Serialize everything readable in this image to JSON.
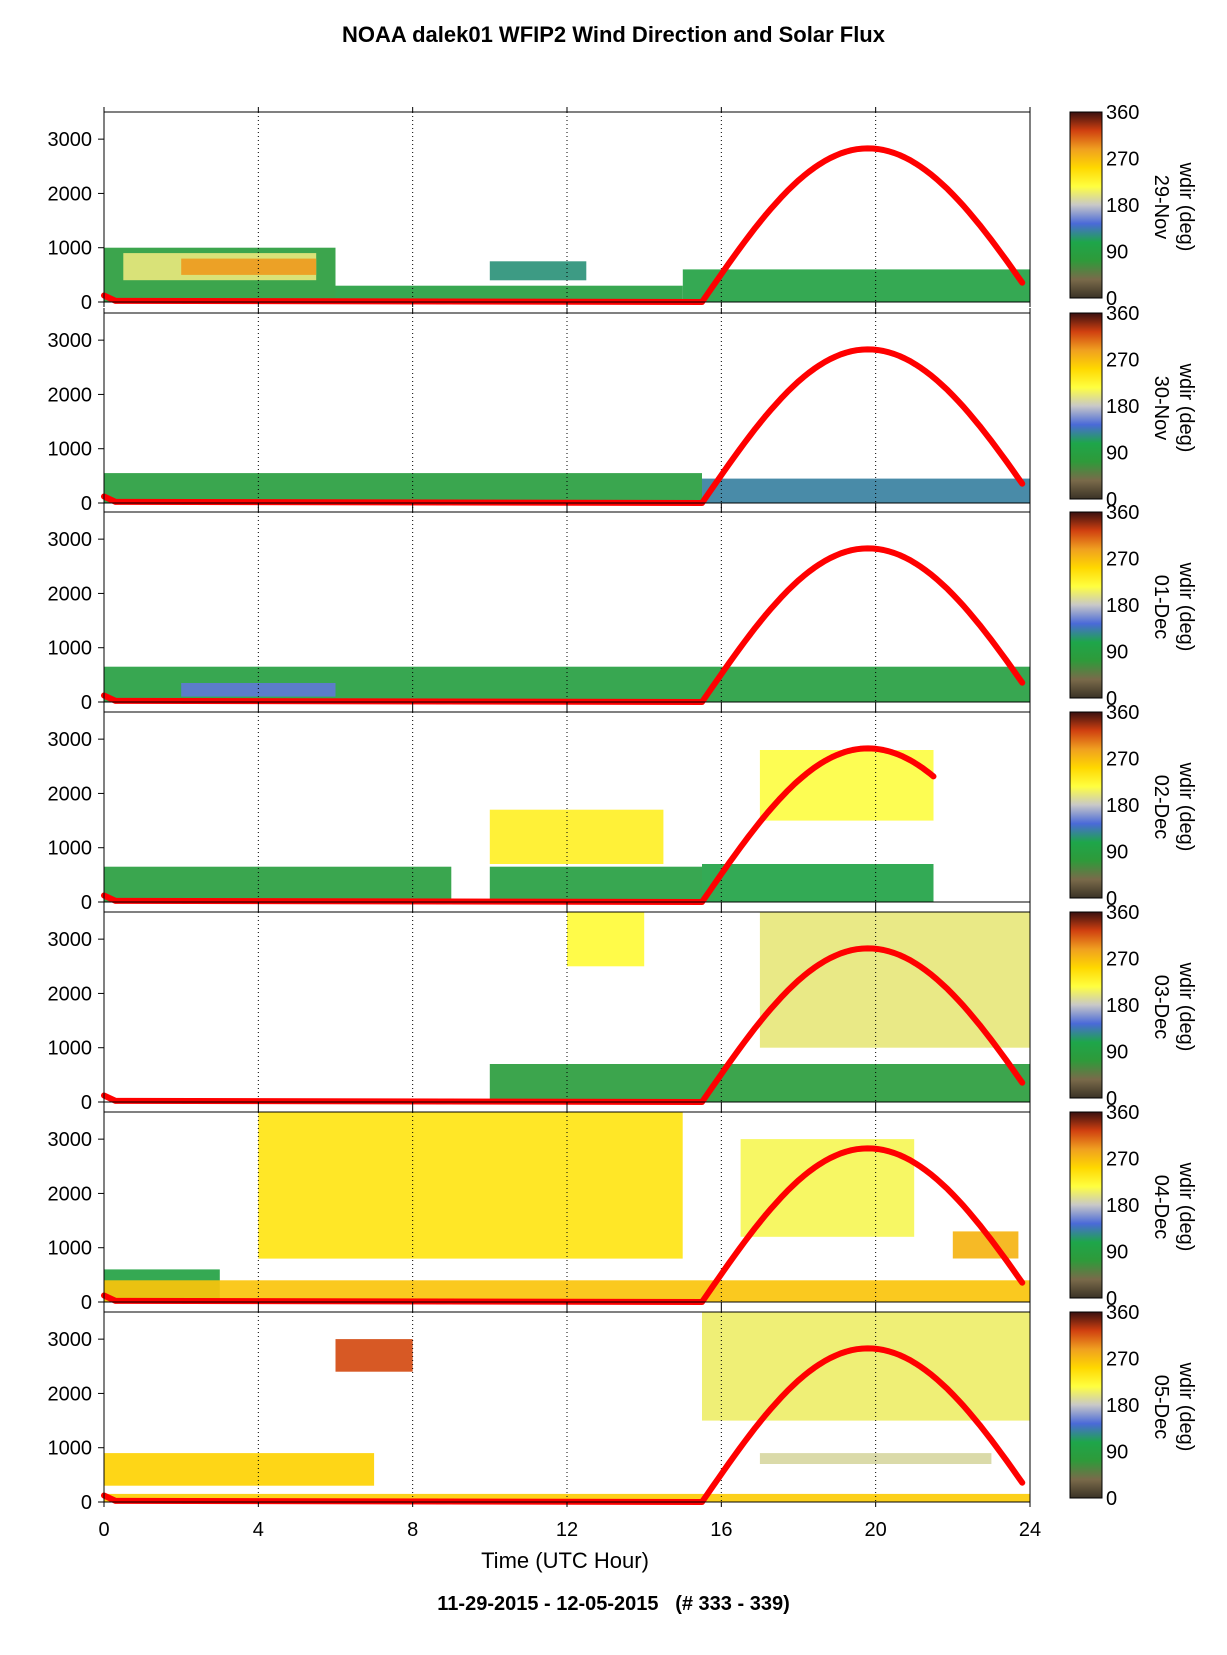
{
  "title": "NOAA dalek01 WFIP2 Wind Direction and Solar Flux",
  "footer": "11-29-2015 - 12-05-2015   (# 333 - 339)",
  "colors": {
    "solar_flux": "#ff0000",
    "colormap": [
      "#3a3226",
      "#7a6a4a",
      "#2f9a3a",
      "#1ea64a",
      "#4a6ad8",
      "#c8c8c8",
      "#ffff40",
      "#ffd800",
      "#f0a020",
      "#d04010",
      "#3a1010"
    ]
  },
  "chart_data": {
    "type": "heatmap",
    "xlabel": "Time (UTC Hour)",
    "xlim": [
      0,
      24
    ],
    "xticks": [
      "0",
      "4",
      "8",
      "12",
      "16",
      "20",
      "24"
    ],
    "ylim": [
      0,
      3500
    ],
    "yticks": [
      "0",
      "1000",
      "2000",
      "3000"
    ],
    "colorbar": {
      "label": "wdir (deg)",
      "ticks": [
        "0",
        "90",
        "180",
        "270",
        "360"
      ],
      "range": [
        0,
        360
      ]
    },
    "grid": "vertical dotted at 4, 8, 12, 16, 20",
    "panels": [
      {
        "day": "29-Nov",
        "solar_flux": {
          "sunrise": 15.5,
          "sunset": 23.8,
          "peak_hour": 19.8,
          "peak": 2830
        },
        "regions": [
          {
            "x": [
              0,
              6
            ],
            "y": [
              0,
              1000
            ],
            "wdir": 80
          },
          {
            "x": [
              0.5,
              5.5
            ],
            "y": [
              400,
              900
            ],
            "wdir": 200
          },
          {
            "x": [
              2,
              5.5
            ],
            "y": [
              500,
              800
            ],
            "wdir": 290
          },
          {
            "x": [
              6,
              15
            ],
            "y": [
              0,
              300
            ],
            "wdir": 90
          },
          {
            "x": [
              10,
              12.5
            ],
            "y": [
              400,
              750
            ],
            "wdir": 120
          },
          {
            "x": [
              15,
              24
            ],
            "y": [
              0,
              600
            ],
            "wdir": 95
          }
        ]
      },
      {
        "day": "30-Nov",
        "solar_flux": {
          "sunrise": 15.5,
          "sunset": 23.8,
          "peak_hour": 19.8,
          "peak": 2830
        },
        "regions": [
          {
            "x": [
              0,
              15.5
            ],
            "y": [
              0,
              550
            ],
            "wdir": 85
          },
          {
            "x": [
              15.5,
              24
            ],
            "y": [
              0,
              450
            ],
            "wdir": 130
          }
        ]
      },
      {
        "day": "01-Dec",
        "solar_flux": {
          "sunrise": 15.5,
          "sunset": 23.8,
          "peak_hour": 19.8,
          "peak": 2830
        },
        "regions": [
          {
            "x": [
              0,
              24
            ],
            "y": [
              0,
              650
            ],
            "wdir": 90
          },
          {
            "x": [
              2,
              6
            ],
            "y": [
              100,
              350
            ],
            "wdir": 150
          }
        ]
      },
      {
        "day": "02-Dec",
        "solar_flux": {
          "sunrise": 15.5,
          "sunset": 21.5,
          "peak_hour": 19.8,
          "peak": 2830
        },
        "regions": [
          {
            "x": [
              0,
              9
            ],
            "y": [
              0,
              650
            ],
            "wdir": 85
          },
          {
            "x": [
              10,
              15.5
            ],
            "y": [
              0,
              650
            ],
            "wdir": 90
          },
          {
            "x": [
              10,
              14.5
            ],
            "y": [
              700,
              1700
            ],
            "wdir": 230
          },
          {
            "x": [
              15.5,
              21.5
            ],
            "y": [
              0,
              700
            ],
            "wdir": 100
          },
          {
            "x": [
              17,
              21.5
            ],
            "y": [
              1500,
              2800
            ],
            "wdir": 215
          }
        ]
      },
      {
        "day": "03-Dec",
        "solar_flux": {
          "sunrise": 15.5,
          "sunset": 23.8,
          "peak_hour": 19.8,
          "peak": 2830
        },
        "regions": [
          {
            "x": [
              10,
              24
            ],
            "y": [
              0,
              700
            ],
            "wdir": 80
          },
          {
            "x": [
              12,
              14
            ],
            "y": [
              2500,
              3500
            ],
            "wdir": 220
          },
          {
            "x": [
              17,
              24
            ],
            "y": [
              1000,
              3500
            ],
            "wdir": 200
          }
        ]
      },
      {
        "day": "04-Dec",
        "solar_flux": {
          "sunrise": 15.5,
          "sunset": 23.8,
          "peak_hour": 19.8,
          "peak": 2830
        },
        "regions": [
          {
            "x": [
              0,
              3
            ],
            "y": [
              0,
              600
            ],
            "wdir": 95
          },
          {
            "x": [
              0,
              24
            ],
            "y": [
              0,
              400
            ],
            "wdir": 265
          },
          {
            "x": [
              4,
              15
            ],
            "y": [
              800,
              3500
            ],
            "wdir": 240
          },
          {
            "x": [
              16.5,
              21
            ],
            "y": [
              1200,
              3000
            ],
            "wdir": 210
          },
          {
            "x": [
              22,
              23.7
            ],
            "y": [
              800,
              1300
            ],
            "wdir": 275
          }
        ]
      },
      {
        "day": "05-Dec",
        "solar_flux": {
          "sunrise": 15.5,
          "sunset": 23.8,
          "peak_hour": 19.8,
          "peak": 2830
        },
        "regions": [
          {
            "x": [
              0,
              24
            ],
            "y": [
              0,
              150
            ],
            "wdir": 260
          },
          {
            "x": [
              0,
              7
            ],
            "y": [
              300,
              900
            ],
            "wdir": 255
          },
          {
            "x": [
              6,
              8
            ],
            "y": [
              2400,
              3000
            ],
            "wdir": 320
          },
          {
            "x": [
              15.5,
              24
            ],
            "y": [
              1500,
              3500
            ],
            "wdir": 205
          },
          {
            "x": [
              17,
              23
            ],
            "y": [
              700,
              900
            ],
            "wdir": 190
          }
        ]
      }
    ]
  }
}
